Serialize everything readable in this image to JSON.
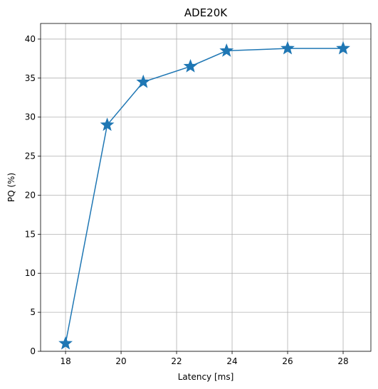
{
  "chart_data": {
    "type": "line",
    "title": "ADE20K",
    "xlabel": "Latency [ms]",
    "ylabel": "PQ (%)",
    "xlim": [
      17.1,
      29.0
    ],
    "ylim": [
      0,
      42
    ],
    "x_ticks": [
      18,
      20,
      22,
      24,
      26,
      28
    ],
    "y_ticks": [
      0,
      5,
      10,
      15,
      20,
      25,
      30,
      35,
      40
    ],
    "grid": true,
    "marker": "star",
    "colors": {
      "series": "#1f77b4"
    },
    "series": [
      {
        "x": [
          18.0,
          19.5,
          20.8,
          22.5,
          23.8,
          26.0,
          28.0
        ],
        "y": [
          1.0,
          29.0,
          34.5,
          36.5,
          38.5,
          38.8,
          38.8
        ]
      }
    ]
  }
}
